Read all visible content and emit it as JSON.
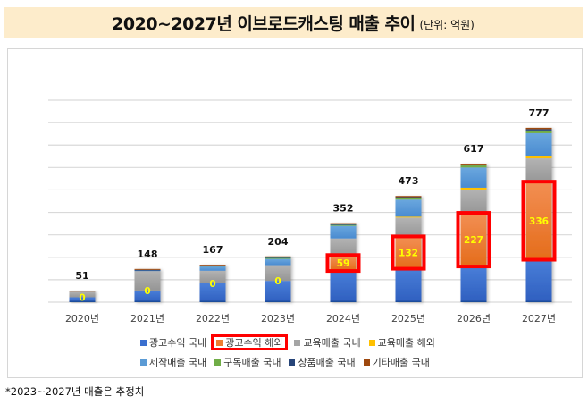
{
  "header": {
    "title": "2020~2027년 이브로드캐스팅 매출 추이",
    "unit": "(단위: 억원)"
  },
  "footnote": "*2023~2027년 매출은 추정치",
  "chart_data": {
    "type": "bar",
    "stacked": true,
    "title": "2020~2027년 이브로드캐스팅 매출 추이",
    "subtitle": "(단위: 억원)",
    "xlabel": "",
    "ylabel": "",
    "ylim": [
      0,
      900
    ],
    "grid": true,
    "legend_position": "bottom",
    "categories": [
      "2020년",
      "2021년",
      "2022년",
      "2023년",
      "2024년",
      "2025년",
      "2026년",
      "2027년"
    ],
    "totals": [
      51,
      148,
      167,
      204,
      352,
      473,
      617,
      777
    ],
    "highlighted_series": "광고수익 해외",
    "series": [
      {
        "name": "광고수익 국내",
        "color": "#3a6fcf",
        "values": [
          22,
          52,
          84,
          95,
          145,
          155,
          165,
          195
        ]
      },
      {
        "name": "광고수익 해외",
        "color": "#ed7d31",
        "values": [
          0,
          0,
          0,
          0,
          59,
          132,
          227,
          336
        ],
        "labels": [
          "0",
          "0",
          "0",
          "0",
          "59",
          "132",
          "227",
          "336"
        ]
      },
      {
        "name": "교육매출 국내",
        "color": "#a5a5a5",
        "values": [
          25,
          88,
          56,
          70,
          80,
          90,
          110,
          110
        ]
      },
      {
        "name": "교육매출 해외",
        "color": "#ffc000",
        "values": [
          0,
          0,
          0,
          0,
          0,
          4,
          8,
          12
        ]
      },
      {
        "name": "제작매출 국내",
        "color": "#5b9bd5",
        "values": [
          0,
          2,
          20,
          28,
          56,
          76,
          90,
          100
        ]
      },
      {
        "name": "구독매출 국내",
        "color": "#70ad47",
        "values": [
          0,
          0,
          2,
          4,
          4,
          6,
          9,
          12
        ]
      },
      {
        "name": "상품매출 국내",
        "color": "#264478",
        "values": [
          0,
          2,
          2,
          3,
          4,
          5,
          4,
          6
        ]
      },
      {
        "name": "기타매출 국내",
        "color": "#9e480e",
        "values": [
          4,
          4,
          3,
          4,
          4,
          5,
          4,
          6
        ]
      }
    ]
  }
}
